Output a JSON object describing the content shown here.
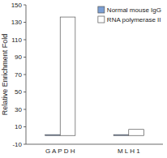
{
  "chart_data": {
    "type": "bar",
    "y_label": "Relative Enrichment Fold",
    "categories": [
      "G A P D H",
      "M L H 1"
    ],
    "series": [
      {
        "name": "Normal mouse IgG",
        "color": "#7B9FD4",
        "values": [
          1,
          1
        ]
      },
      {
        "name": "RNA polymerase II",
        "color": "#FFFFFF",
        "values": [
          136,
          7
        ]
      }
    ],
    "ylim": [
      -10,
      150
    ],
    "yticks": [
      -10,
      10,
      30,
      50,
      70,
      90,
      110,
      130,
      150
    ],
    "legend": "upper right",
    "grid": false
  }
}
